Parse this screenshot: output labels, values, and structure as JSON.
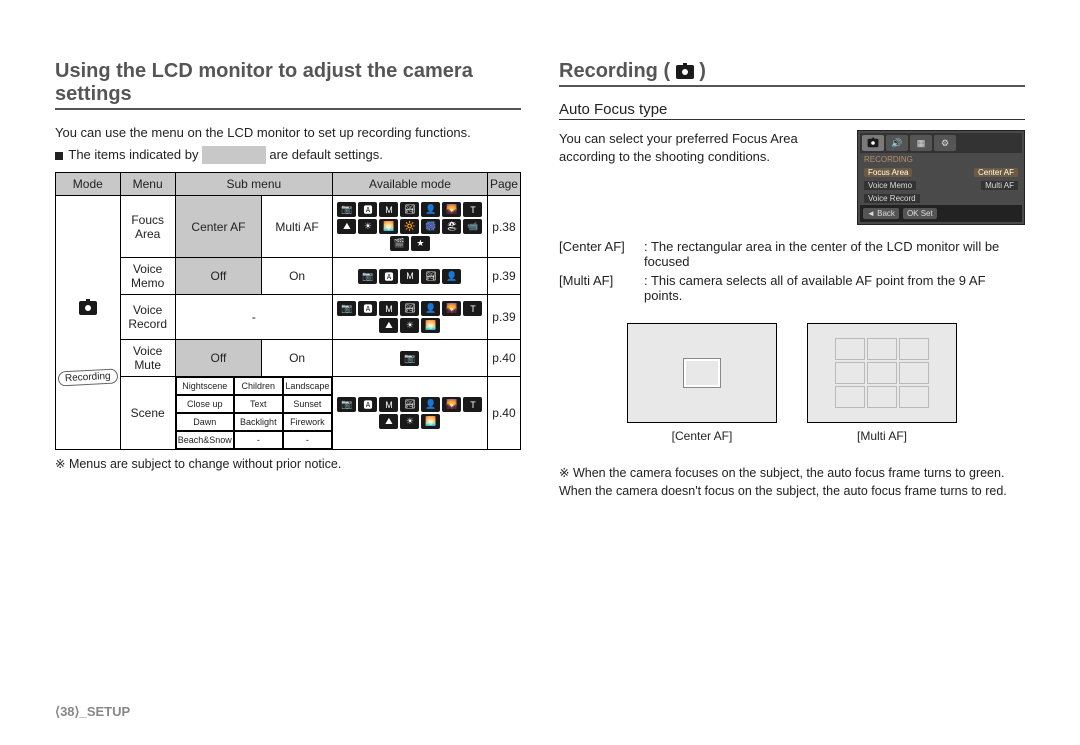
{
  "left": {
    "heading": "Using the LCD monitor to adjust the camera settings",
    "intro1": "You can use the menu on the LCD monitor to set up recording functions.",
    "intro2a": "The items indicated by",
    "intro2b": "are default settings.",
    "table": {
      "headers": [
        "Mode",
        "Menu",
        "Sub menu",
        "Available mode",
        "Page"
      ],
      "mode_label": "Recording",
      "rows": [
        {
          "menu": "Foucs Area",
          "sub1": "Center AF",
          "sub2": "Multi AF",
          "page": "p.38",
          "icons": 16
        },
        {
          "menu": "Voice Memo",
          "sub1": "Off",
          "sub2": "On",
          "page": "p.39",
          "icons": 5
        },
        {
          "menu": "Voice Record",
          "sub1": "",
          "sub2": "-",
          "page": "p.39",
          "icons": 10
        },
        {
          "menu": "Voice Mute",
          "sub1": "Off",
          "sub2": "On",
          "page": "p.40",
          "icons": 1
        },
        {
          "menu": "Scene",
          "page": "p.40",
          "icons": 10,
          "scenes": [
            "Nightscene",
            "Children",
            "Landscape",
            "Close up",
            "Text",
            "Sunset",
            "Dawn",
            "Backlight",
            "Firework",
            "Beach&Snow",
            "-",
            "-"
          ]
        }
      ]
    },
    "note": "※ Menus are subject to change without prior notice."
  },
  "right": {
    "heading": "Recording ( ",
    "heading_end": " )",
    "subheading": "Auto Focus type",
    "intro": "You can select your preferred Focus Area according to the shooting conditions.",
    "menu": {
      "title": "RECORDING",
      "row1_l": "Focus Area",
      "row1_r": "Center AF",
      "row2_l": "Voice Memo",
      "row2_r": "Multi AF",
      "row3_l": "Voice Record",
      "back": "◄  Back",
      "set": "OK  Set"
    },
    "defs": [
      {
        "label": "[Center AF]",
        "text": ": The rectangular area in the center of the LCD monitor will be focused"
      },
      {
        "label": "[Multi AF]",
        "text": ": This camera selects all of available AF point from the 9 AF points."
      }
    ],
    "example1": "[Center AF]",
    "example2": "[Multi AF]",
    "note": "※ When the camera focuses on the subject, the auto focus frame turns to green. When the camera doesn't focus on the subject, the auto focus frame turns to red."
  },
  "footer": "⟨38⟩_SETUP"
}
